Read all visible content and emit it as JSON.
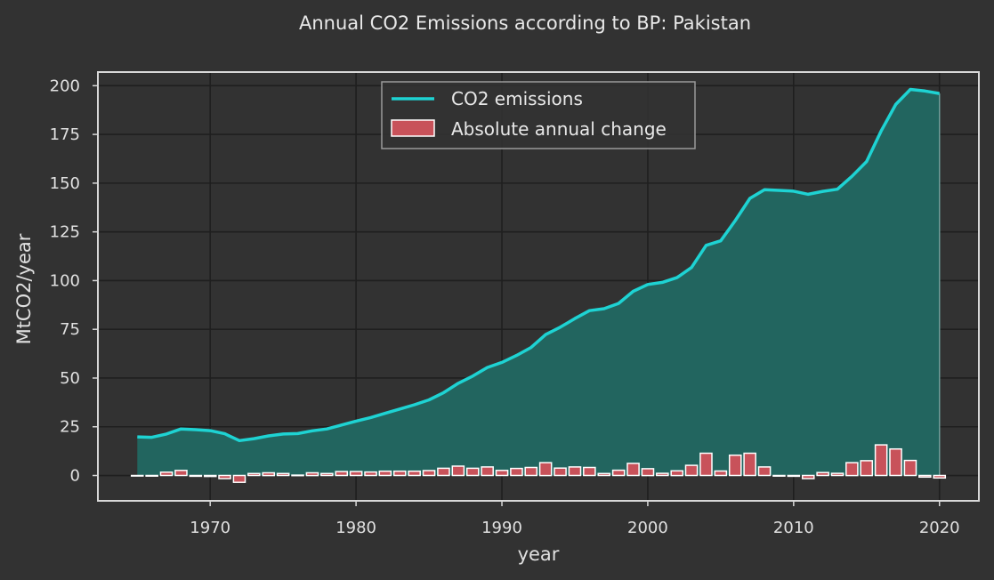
{
  "chart_data": {
    "type": "line",
    "title": "Annual CO2 Emissions according to BP: Pakistan",
    "xlabel": "year",
    "ylabel": "MtCO2/year",
    "xlim": [
      1962.3,
      2022.7
    ],
    "ylim": [
      -13,
      207
    ],
    "xticks": [
      1970,
      1980,
      1990,
      2000,
      2010,
      2020
    ],
    "yticks": [
      0,
      25,
      50,
      75,
      100,
      125,
      150,
      175,
      200
    ],
    "grid": true,
    "legend_position": "top-center",
    "colors": {
      "line": "#1ed3d3",
      "area": "#22655f",
      "bars": "#c8525a",
      "bar_edge": "#ffffff"
    },
    "series": [
      {
        "name": "CO2 emissions",
        "type": "line",
        "x": [
          1965,
          1966,
          1967,
          1968,
          1969,
          1970,
          1971,
          1972,
          1973,
          1974,
          1975,
          1976,
          1977,
          1978,
          1979,
          1980,
          1981,
          1982,
          1983,
          1984,
          1985,
          1986,
          1987,
          1988,
          1989,
          1990,
          1991,
          1992,
          1993,
          1994,
          1995,
          1996,
          1997,
          1998,
          1999,
          2000,
          2001,
          2002,
          2003,
          2004,
          2005,
          2006,
          2007,
          2008,
          2009,
          2010,
          2011,
          2012,
          2013,
          2014,
          2015,
          2016,
          2017,
          2018,
          2019,
          2020
        ],
        "values": [
          19.8,
          19.6,
          21.3,
          23.9,
          23.5,
          23.0,
          21.4,
          17.9,
          18.9,
          20.3,
          21.3,
          21.5,
          22.9,
          23.9,
          25.9,
          27.9,
          29.7,
          31.9,
          34.1,
          36.3,
          38.8,
          42.5,
          47.3,
          51.0,
          55.4,
          58.0,
          61.6,
          65.7,
          72.3,
          76.1,
          80.5,
          84.6,
          85.6,
          88.3,
          94.5,
          98.0,
          99.1,
          101.5,
          106.7,
          118.1,
          120.4,
          130.8,
          142.2,
          146.6,
          146.3,
          145.9,
          144.3,
          145.8,
          146.9,
          153.5,
          161.1,
          176.8,
          190.4,
          198.1,
          197.3,
          196.0
        ]
      },
      {
        "name": "Absolute annual change",
        "type": "bar",
        "x": [
          1965,
          1966,
          1967,
          1968,
          1969,
          1970,
          1971,
          1972,
          1973,
          1974,
          1975,
          1976,
          1977,
          1978,
          1979,
          1980,
          1981,
          1982,
          1983,
          1984,
          1985,
          1986,
          1987,
          1988,
          1989,
          1990,
          1991,
          1992,
          1993,
          1994,
          1995,
          1996,
          1997,
          1998,
          1999,
          2000,
          2001,
          2002,
          2003,
          2004,
          2005,
          2006,
          2007,
          2008,
          2009,
          2010,
          2011,
          2012,
          2013,
          2014,
          2015,
          2016,
          2017,
          2018,
          2019,
          2020
        ],
        "values": [
          0,
          -0.3,
          1.7,
          2.6,
          -0.4,
          -0.5,
          -1.6,
          -3.5,
          1.0,
          1.4,
          1.0,
          0.2,
          1.4,
          1.0,
          2.0,
          2.0,
          1.8,
          2.2,
          2.2,
          2.2,
          2.5,
          3.7,
          4.8,
          3.7,
          4.4,
          2.6,
          3.6,
          4.1,
          6.6,
          3.8,
          4.4,
          4.1,
          1.0,
          2.7,
          6.2,
          3.5,
          1.1,
          2.4,
          5.2,
          11.4,
          2.3,
          10.4,
          11.4,
          4.4,
          -0.3,
          -0.4,
          -1.6,
          1.5,
          1.1,
          6.6,
          7.6,
          15.7,
          13.6,
          7.7,
          -0.8,
          -1.3
        ]
      }
    ]
  }
}
